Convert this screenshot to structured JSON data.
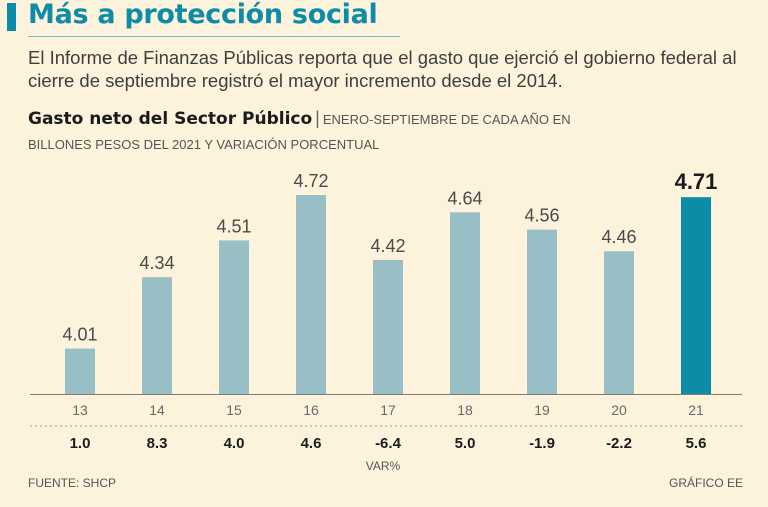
{
  "header": {
    "title": "Más a protección social",
    "intro": "El Informe de Finanzas Públicas reporta que el gasto que ejerció el gobierno federal al cierre de septiembre registró el mayor incremento desde el 2014."
  },
  "chart_data": {
    "type": "bar",
    "title": "Gasto neto del Sector Público",
    "separator": "|",
    "subtitle_line1": "ENERO-SEPTIEMBRE DE CADA AÑO EN",
    "subtitle_line2": "BILLONES PESOS DEL 2021 Y VARIACIÓN PORCENTUAL",
    "categories": [
      "13",
      "14",
      "15",
      "16",
      "17",
      "18",
      "19",
      "20",
      "21"
    ],
    "values": [
      4.01,
      4.34,
      4.51,
      4.72,
      4.42,
      4.64,
      4.56,
      4.46,
      4.71
    ],
    "value_labels": [
      "4.01",
      "4.34",
      "4.51",
      "4.72",
      "4.42",
      "4.64",
      "4.56",
      "4.46",
      "4.71"
    ],
    "variation": [
      "1.0",
      "8.3",
      "4.0",
      "4.6",
      "-6.4",
      "5.0",
      "-1.9",
      "-2.2",
      "5.6"
    ],
    "variation_label": "VAR%",
    "highlight_index": 8,
    "ylim": [
      3.8,
      4.8
    ],
    "colors": {
      "bar": "#97bfc5",
      "highlight": "#0d8ca8",
      "axis": "#7d7d7d"
    }
  },
  "footer": {
    "source": "FUENTE: SHCP",
    "credit": "GRÁFICO EE"
  }
}
